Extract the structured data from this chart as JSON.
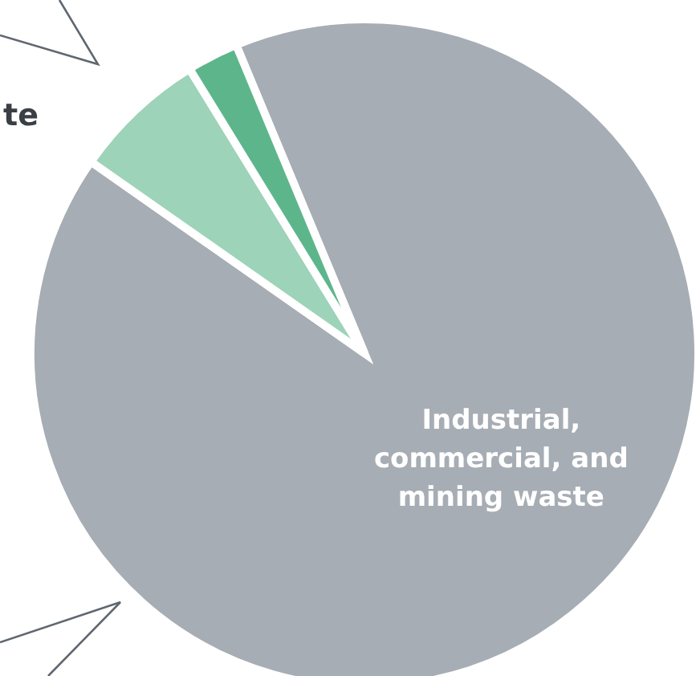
{
  "chart_data": {
    "type": "pie",
    "categories": [
      "Industrial, commercial, and mining waste",
      null,
      null
    ],
    "values": [
      91,
      6.5,
      2.5
    ],
    "colors": [
      "#a7adb4",
      "#9dd3b9",
      "#5db68b"
    ],
    "annotations": [
      "te"
    ]
  }
}
